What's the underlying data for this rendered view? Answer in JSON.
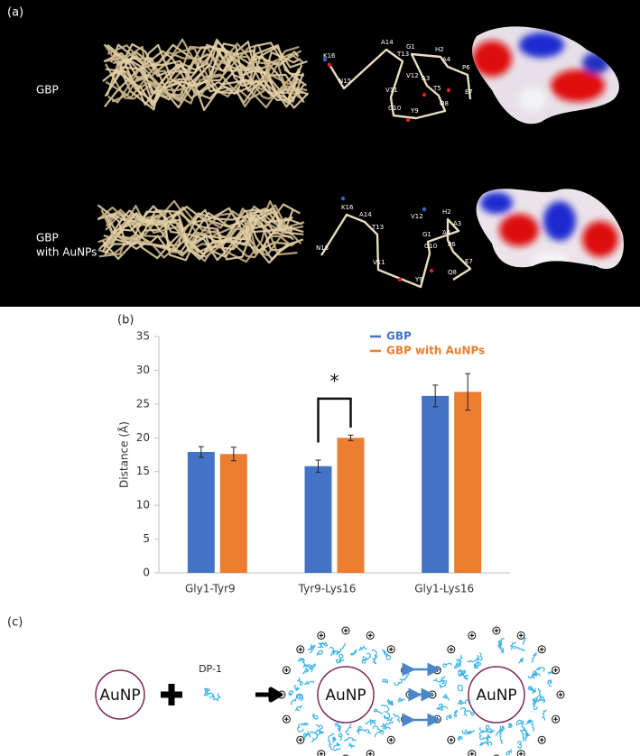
{
  "panel_a": {
    "label": "(a)",
    "rows": [
      [
        "GBP"
      ],
      [
        "GBP",
        "with AuNPs"
      ]
    ],
    "residues_top": [
      "K16",
      "A14",
      "G1",
      "H2",
      "T13",
      "A4",
      "N15",
      "V12",
      "A3",
      "P6",
      "T5",
      "V11",
      "Q8",
      "E7",
      "G10",
      "Y9"
    ],
    "residues_bottom": [
      "K16",
      "A14",
      "V12",
      "H2",
      "A3",
      "T13",
      "A4",
      "G1",
      "N15",
      "P6",
      "G10",
      "V11",
      "E7",
      "Q8",
      "Y9"
    ]
  },
  "chart_data": {
    "type": "bar",
    "panel_label": "(b)",
    "y_label": "Distance (Å)",
    "categories": [
      "Gly1-Tyr9",
      "Tyr9-Lys16",
      "Gly1-Lys16"
    ],
    "series": [
      {
        "name": "GBP",
        "color": "#4472c4",
        "values": [
          17.9,
          15.8,
          26.2
        ],
        "errors": [
          0.8,
          0.9,
          1.6
        ]
      },
      {
        "name": "GBP with AuNPs",
        "color": "#ed7d31",
        "values": [
          17.6,
          20.0,
          26.8
        ],
        "errors": [
          1.0,
          0.4,
          2.7
        ]
      }
    ],
    "ylim": [
      0,
      35
    ],
    "yticks": [
      0,
      5,
      10,
      15,
      20,
      25,
      30,
      35
    ],
    "grid": false,
    "legend": "top",
    "annotation": "*"
  },
  "panel_c": {
    "label": "(c)",
    "particles": [
      "AuNP",
      "AuNP",
      "AuNP"
    ],
    "reagent": "DP-1"
  }
}
